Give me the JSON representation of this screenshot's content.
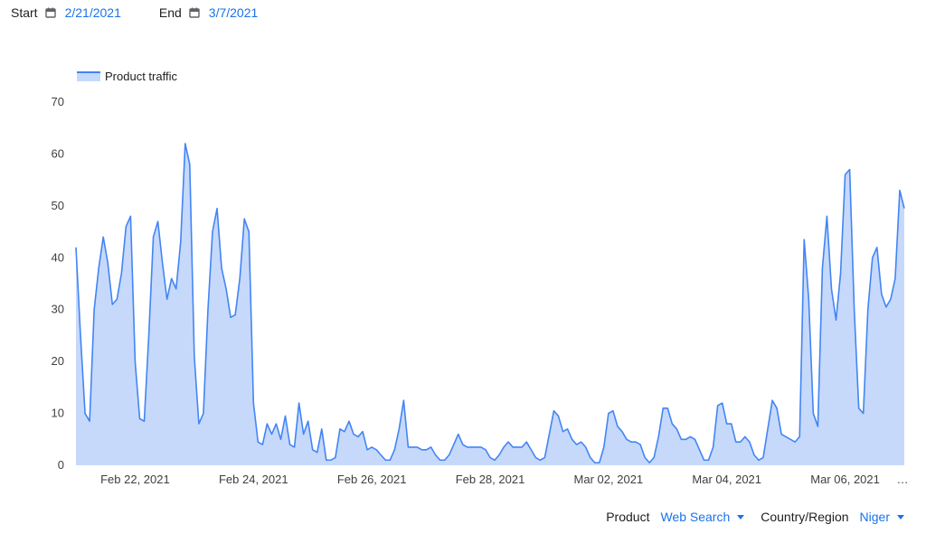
{
  "header": {
    "start_label": "Start",
    "start_date": "2/21/2021",
    "end_label": "End",
    "end_date": "3/7/2021"
  },
  "filters": {
    "product_label": "Product",
    "product_value": "Web Search",
    "region_label": "Country/Region",
    "region_value": "Niger"
  },
  "colors": {
    "line": "#4285f4",
    "fill": "#c6d9fb",
    "accent": "#1a73e8"
  },
  "chart_data": {
    "type": "area",
    "legend": [
      "Product traffic"
    ],
    "legend_position": "top-left",
    "grid": false,
    "ylim": [
      0,
      70
    ],
    "yticks": [
      0,
      10,
      20,
      30,
      40,
      50,
      60,
      70
    ],
    "xlabels": [
      "Feb 22, 2021",
      "Feb 24, 2021",
      "Feb 26, 2021",
      "Feb 28, 2021",
      "Mar 02, 2021",
      "Mar 04, 2021",
      "Mar 06, 2021",
      "…"
    ],
    "x_start": "2021-02-21",
    "x_end": "2021-03-07",
    "series": [
      {
        "name": "Product traffic",
        "values": [
          42,
          25,
          10,
          8.5,
          30,
          38,
          44,
          39,
          31,
          32,
          37,
          46,
          48,
          20,
          9,
          8.5,
          25,
          44,
          47,
          39,
          32,
          36,
          34,
          43,
          62,
          58,
          21,
          8,
          10,
          30,
          45,
          49.5,
          38,
          34,
          28.5,
          29,
          36,
          47.5,
          45,
          12,
          4.5,
          4,
          8,
          6,
          8,
          5,
          9.5,
          4,
          3.5,
          12,
          6,
          8.5,
          3,
          2.5,
          7,
          1,
          1,
          1.5,
          7,
          6.5,
          8.5,
          6,
          5.5,
          6.5,
          3,
          3.5,
          3,
          2,
          1,
          1,
          3,
          7,
          12.5,
          3.5,
          3.5,
          3.5,
          3,
          3,
          3.5,
          2,
          1,
          1,
          2,
          4,
          6,
          4,
          3.5,
          3.5,
          3.5,
          3.5,
          3,
          1.5,
          1,
          2,
          3.5,
          4.5,
          3.5,
          3.5,
          3.5,
          4.5,
          3,
          1.5,
          1,
          1.5,
          6,
          10.5,
          9.5,
          6.5,
          7,
          5,
          4,
          4.5,
          3.5,
          1.5,
          0.5,
          0.5,
          3.5,
          10,
          10.5,
          7.5,
          6.5,
          5,
          4.5,
          4.5,
          4,
          1.5,
          0.5,
          1.5,
          5.5,
          11,
          11,
          8,
          7,
          5,
          5,
          5.5,
          5,
          3,
          1,
          1,
          3.5,
          11.5,
          12,
          8,
          8,
          4.5,
          4.5,
          5.5,
          4.5,
          2,
          1,
          1.5,
          7,
          12.5,
          11,
          6,
          5.5,
          5,
          4.5,
          5.5,
          43.5,
          32,
          10,
          7.5,
          38,
          48,
          34,
          28,
          37,
          56,
          57,
          30,
          11,
          10,
          30,
          40,
          42,
          33,
          30.5,
          32,
          36,
          53,
          49.5
        ]
      }
    ]
  }
}
